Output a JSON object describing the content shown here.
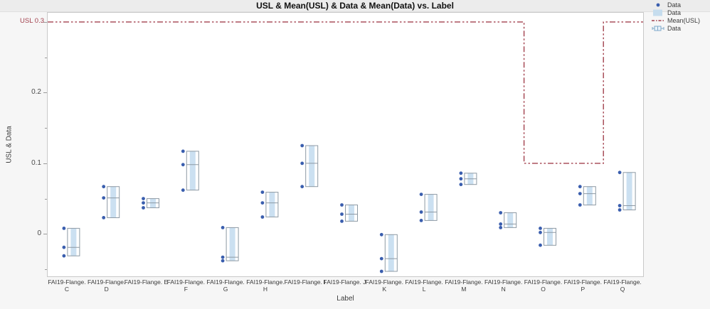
{
  "title": "USL & Mean(USL) & Data & Mean(Data) vs. Label",
  "y_axis": {
    "title": "USL & Data",
    "usl_annotation": "USL 0.3"
  },
  "x_axis": {
    "title": "Label"
  },
  "legend": {
    "items": [
      {
        "label": "Data",
        "type": "point"
      },
      {
        "label": "Data",
        "type": "bar"
      },
      {
        "label": "Mean(USL)",
        "type": "line"
      },
      {
        "label": "Data",
        "type": "box"
      }
    ]
  },
  "colors": {
    "usl_red": "#a2404d",
    "point_blue": "#3a5eae",
    "band_fill": "#cbe0f1",
    "box_stroke": "#8d99a4",
    "tick_gray": "#9a9a9a"
  },
  "chart_data": {
    "type": "box",
    "title": "USL & Mean(USL) & Data & Mean(Data) vs. Label",
    "xlabel": "Label",
    "ylabel": "USL & Data",
    "ylim": [
      -0.06,
      0.313
    ],
    "grid": false,
    "legend_position": "top-right",
    "y_major_ticks": [
      {
        "value": 0,
        "label": "0"
      },
      {
        "value": 0.1,
        "label": "0.1"
      },
      {
        "value": 0.2,
        "label": "0.2"
      },
      {
        "value": 0.3,
        "label": ""
      }
    ],
    "y_minor_ticks": [
      -0.05,
      0.05,
      0.15,
      0.25
    ],
    "usl_line_value": 0.3,
    "categories": [
      {
        "label": "FAI19-Flange. C",
        "prefix": "FAI19-Flange.",
        "letter": "C",
        "two_line": true,
        "max": 0.008,
        "mean": -0.019,
        "min": -0.031,
        "usl": 0.3
      },
      {
        "label": "FAI19-Flange. D",
        "prefix": "FAI19-Flange.",
        "letter": "D",
        "two_line": true,
        "max": 0.067,
        "mean": 0.051,
        "min": 0.023,
        "usl": 0.3
      },
      {
        "label": "FAI19-Flange. E",
        "prefix": "FAI19-Flange.",
        "letter": "E",
        "two_line": false,
        "max": 0.05,
        "mean": 0.044,
        "min": 0.037,
        "usl": 0.3
      },
      {
        "label": "FAI19-Flange. F",
        "prefix": "FAI19-Flange.",
        "letter": "F",
        "two_line": true,
        "max": 0.117,
        "mean": 0.098,
        "min": 0.062,
        "usl": 0.3
      },
      {
        "label": "FAI19-Flange. G",
        "prefix": "FAI19-Flange.",
        "letter": "G",
        "two_line": true,
        "max": 0.009,
        "mean": -0.033,
        "min": -0.038,
        "usl": 0.3
      },
      {
        "label": "FAI19-Flange. H",
        "prefix": "FAI19-Flange.",
        "letter": "H",
        "two_line": true,
        "max": 0.059,
        "mean": 0.044,
        "min": 0.024,
        "usl": 0.3
      },
      {
        "label": "FAI19-Flange. I",
        "prefix": "FAI19-Flange.",
        "letter": "I",
        "two_line": false,
        "max": 0.125,
        "mean": 0.1,
        "min": 0.067,
        "usl": 0.3
      },
      {
        "label": "FAI19-Flange. J",
        "prefix": "FAI19-Flange.",
        "letter": "J",
        "two_line": false,
        "max": 0.041,
        "mean": 0.028,
        "min": 0.018,
        "usl": 0.3
      },
      {
        "label": "FAI19-Flange. K",
        "prefix": "FAI19-Flange.",
        "letter": "K",
        "two_line": true,
        "max": -0.001,
        "mean": -0.035,
        "min": -0.053,
        "usl": 0.3
      },
      {
        "label": "FAI19-Flange. L",
        "prefix": "FAI19-Flange.",
        "letter": "L",
        "two_line": true,
        "max": 0.056,
        "mean": 0.031,
        "min": 0.019,
        "usl": 0.3
      },
      {
        "label": "FAI19-Flange. M",
        "prefix": "FAI19-Flange.",
        "letter": "M",
        "two_line": true,
        "max": 0.086,
        "mean": 0.078,
        "min": 0.07,
        "usl": 0.3
      },
      {
        "label": "FAI19-Flange. N",
        "prefix": "FAI19-Flange.",
        "letter": "N",
        "two_line": true,
        "max": 0.03,
        "mean": 0.014,
        "min": 0.009,
        "usl": 0.3
      },
      {
        "label": "FAI19-Flange. O",
        "prefix": "FAI19-Flange.",
        "letter": "O",
        "two_line": true,
        "max": 0.008,
        "mean": 0.002,
        "min": -0.016,
        "usl": 0.1
      },
      {
        "label": "FAI19-Flange. P",
        "prefix": "FAI19-Flange.",
        "letter": "P",
        "two_line": true,
        "max": 0.067,
        "mean": 0.057,
        "min": 0.041,
        "usl": 0.1
      },
      {
        "label": "FAI19-Flange. Q",
        "prefix": "FAI19-Flange.",
        "letter": "Q",
        "two_line": true,
        "max": 0.087,
        "mean": 0.04,
        "min": 0.034,
        "usl": 0.3
      }
    ]
  }
}
